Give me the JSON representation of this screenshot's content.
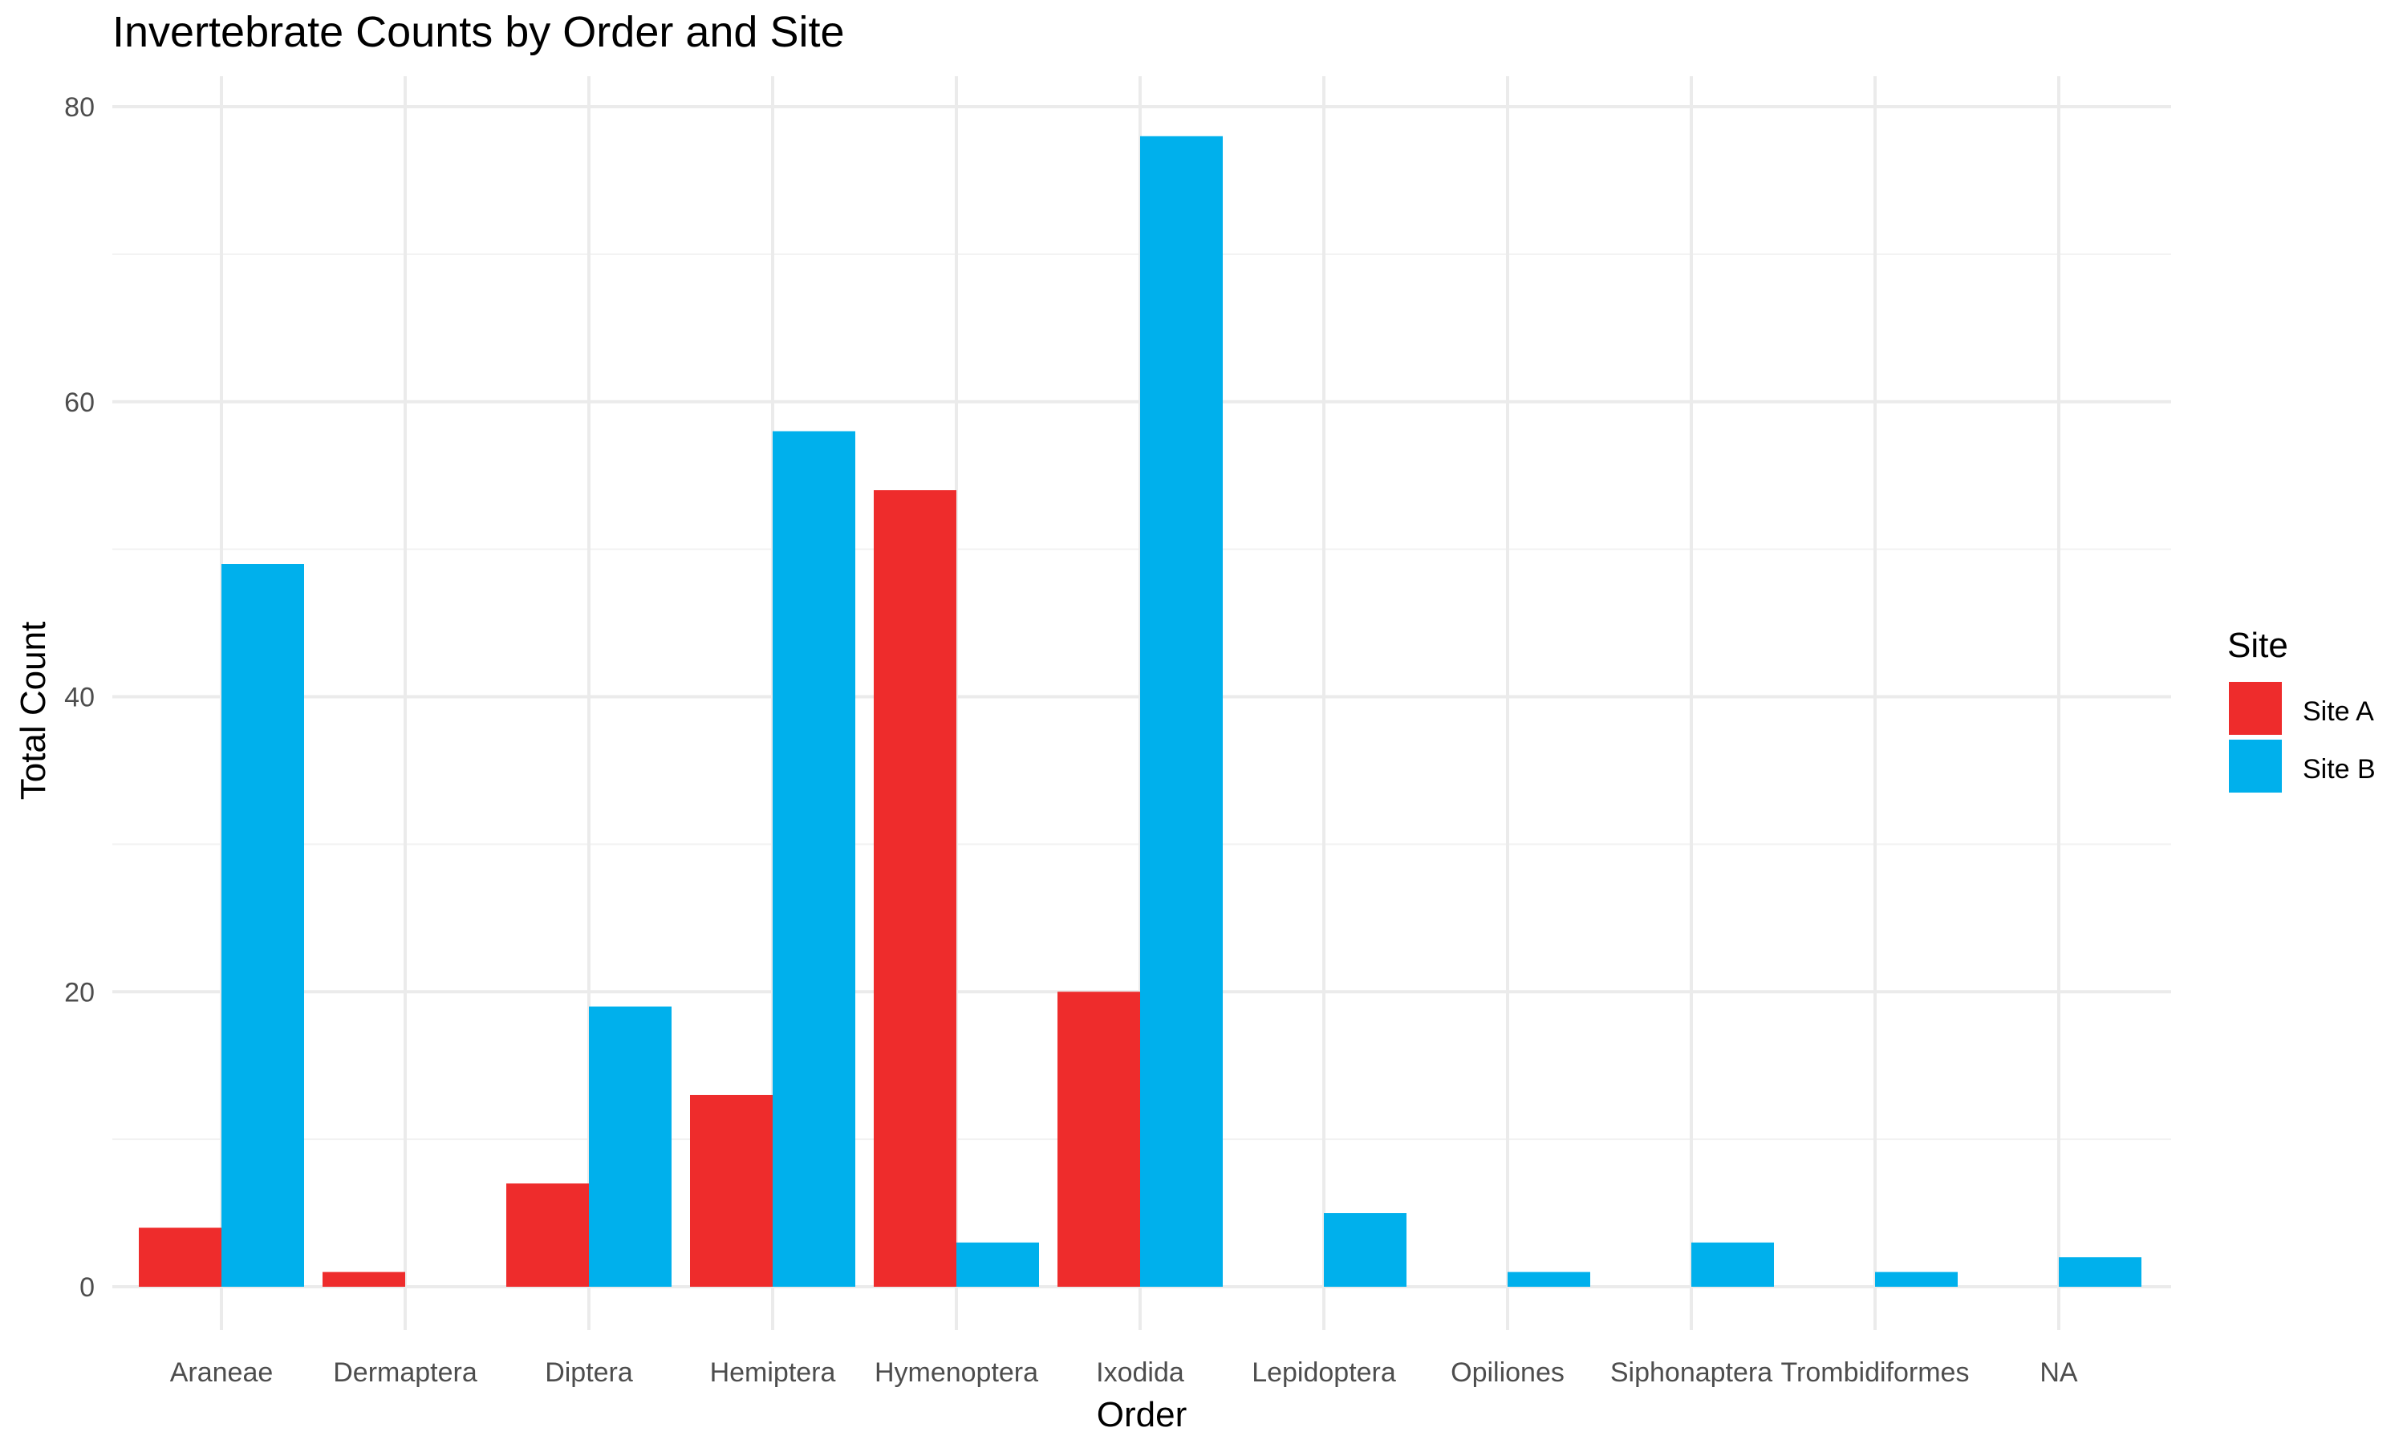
{
  "chart_data": {
    "type": "bar",
    "title": "Invertebrate Counts by Order and Site",
    "xlabel": "Order",
    "ylabel": "Total Count",
    "categories": [
      "Araneae",
      "Dermaptera",
      "Diptera",
      "Hemiptera",
      "Hymenoptera",
      "Ixodida",
      "Lepidoptera",
      "Opiliones",
      "Siphonaptera",
      "Trombidiformes",
      "NA"
    ],
    "series": [
      {
        "name": "Site A",
        "color": "#ee2c2c",
        "values": [
          4,
          1,
          7,
          13,
          54,
          20,
          null,
          null,
          null,
          null,
          null
        ]
      },
      {
        "name": "Site B",
        "color": "#00b0ec",
        "values": [
          49,
          null,
          19,
          58,
          3,
          78,
          5,
          1,
          3,
          1,
          2
        ]
      }
    ],
    "ylim": [
      0,
      80
    ],
    "yticks": [
      0,
      20,
      40,
      60,
      80
    ],
    "grid": true,
    "legend": {
      "title": "Site",
      "position": "right"
    }
  }
}
